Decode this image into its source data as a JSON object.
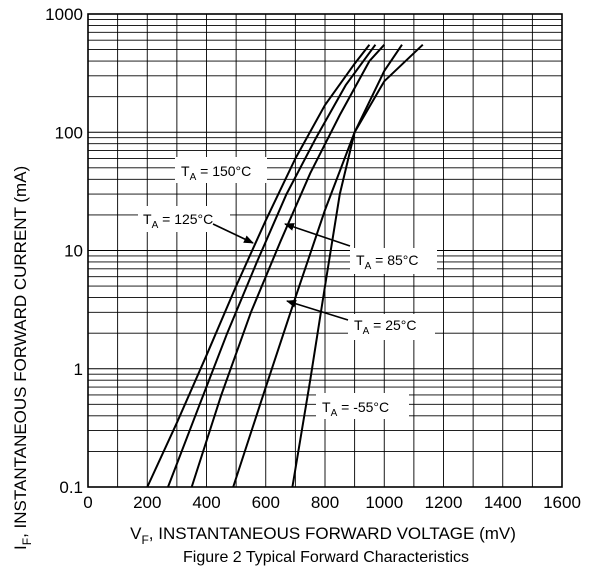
{
  "chart_data": {
    "type": "line",
    "title": "Figure 2 Typical Forward Characteristics",
    "xlabel_main": "V",
    "xlabel_sub": "F",
    "xlabel_rest": ", INSTANTANEOUS FORWARD VOLTAGE (mV)",
    "ylabel_main": "I",
    "ylabel_sub": "F",
    "ylabel_rest": ", INSTANTANEOUS FORWARD CURRENT (mA)",
    "xlim": [
      0,
      1600
    ],
    "ylim": [
      0.1,
      1000
    ],
    "yscale": "log",
    "grid": true,
    "x_ticks": [
      "0",
      "200",
      "400",
      "600",
      "800",
      "1000",
      "1200",
      "1400",
      "1600"
    ],
    "y_ticks": [
      "0.1",
      "1",
      "10",
      "100",
      "1000"
    ],
    "series": [
      {
        "name_main": "T",
        "name_sub": "A",
        "name_rest": " = 150°C",
        "x": [
          200,
          300,
          400,
          500,
          600,
          700,
          800,
          900,
          950
        ],
        "y": [
          0.1,
          0.35,
          1.3,
          5,
          18,
          60,
          170,
          380,
          550
        ]
      },
      {
        "name_main": "T",
        "name_sub": "A",
        "name_rest": " = 125°C",
        "x": [
          270,
          370,
          470,
          570,
          670,
          770,
          870,
          970
        ],
        "y": [
          0.1,
          0.45,
          2,
          8,
          30,
          90,
          250,
          550
        ]
      },
      {
        "name_main": "T",
        "name_sub": "A",
        "name_rest": " = 85°C",
        "x": [
          350,
          450,
          550,
          650,
          750,
          850,
          950,
          1000
        ],
        "y": [
          0.1,
          0.6,
          3,
          12,
          45,
          140,
          400,
          550
        ]
      },
      {
        "name_main": "T",
        "name_sub": "A",
        "name_rest": " = 25°C",
        "x": [
          490,
          600,
          700,
          800,
          900,
          1000,
          1060
        ],
        "y": [
          0.1,
          0.7,
          4,
          22,
          100,
          330,
          550
        ]
      },
      {
        "name_main": "T",
        "name_sub": "A",
        "name_rest": " = -55°C",
        "x": [
          690,
          750,
          800,
          850,
          900,
          1000,
          1130
        ],
        "y": [
          0.1,
          0.8,
          5,
          30,
          100,
          270,
          550
        ]
      }
    ]
  }
}
